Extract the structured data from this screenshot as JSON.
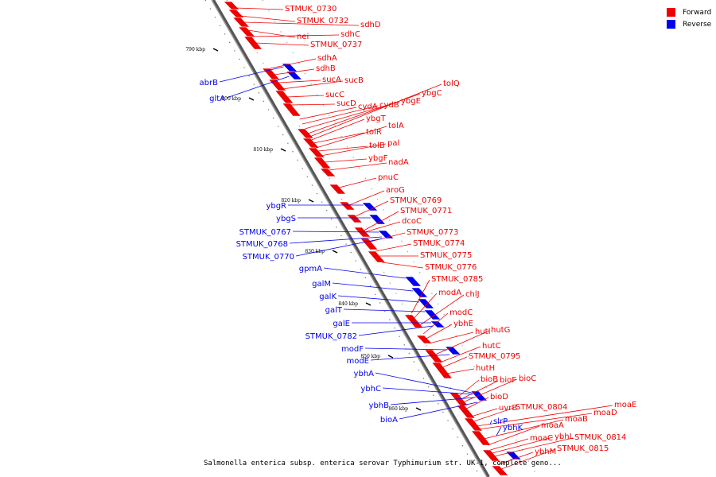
{
  "caption": "Salmonella enterica subsp. enterica serovar Typhimurium str. UK-1, complete geno...",
  "legend": {
    "forward_label": "Forward",
    "reverse_label": "Reverse",
    "forward_color": "#ee0000",
    "reverse_color": "#0000ee"
  },
  "ticks": [
    "790 kbp",
    "800 kbp",
    "810 kbp",
    "820 kbp",
    "830 kbp",
    "840 kbp",
    "850 kbp",
    "860 kbp"
  ],
  "forward_genes": [
    "STMUK_0730",
    "STMUK_0732",
    "sdhD",
    "nei",
    "sdhC",
    "STMUK_0737",
    "sdhA",
    "sdhB",
    "sucA",
    "sucB",
    "sucC",
    "sucD",
    "cydA",
    "cydB",
    "ybgE",
    "ybgC",
    "tolQ",
    "ybgT",
    "tolR",
    "tolA",
    "tolB",
    "pal",
    "ybgF",
    "nadA",
    "pnuC",
    "aroG",
    "STMUK_0769",
    "STMUK_0771",
    "dcoC",
    "STMUK_0773",
    "STMUK_0774",
    "STMUK_0775",
    "STMUK_0776",
    "STMUK_0785",
    "modA",
    "chlJ",
    "modC",
    "ybhE",
    "hutI",
    "hutG",
    "hutC",
    "STMUK_0795",
    "hutH",
    "bioB",
    "bioF",
    "bioC",
    "bioD",
    "uvrB",
    "STMUK_0804",
    "moaE",
    "moaD",
    "moaB",
    "moaA",
    "moaC",
    "ybhL",
    "STMUK_0814",
    "ybhM",
    "STMUK_0815"
  ],
  "reverse_genes": [
    "abrB",
    "gltA",
    "ybgR",
    "ybgS",
    "STMUK_0767",
    "STMUK_0768",
    "STMUK_0770",
    "gpmA",
    "galM",
    "galK",
    "galT",
    "galE",
    "STMUK_0782",
    "modF",
    "modE",
    "ybhA",
    "ybhC",
    "ybhB",
    "bioA",
    "slrP",
    "ybhK"
  ]
}
